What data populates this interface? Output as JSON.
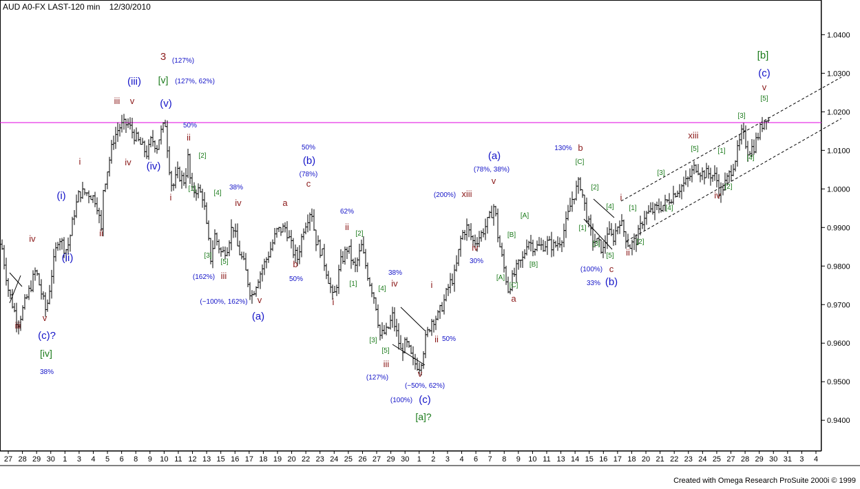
{
  "header": {
    "symbol": "AUD A0-FX LAST-120 min",
    "date": "12/30/2010"
  },
  "footer": {
    "credit": "Created with Omega Research ProSuite 2000i © 1999"
  },
  "colors": {
    "wave_navy": "#1414c8",
    "wave_brown": "#8b1a1a",
    "wave_green": "#1a7a1a",
    "resistance": "#e000e0",
    "price": "#000000"
  },
  "chart_data": {
    "type": "ohlc",
    "title": "AUD A0-FX LAST-120 min",
    "ylim": [
      0.932,
      1.049
    ],
    "y_ticks": [
      "1.0400",
      "1.0300",
      "1.0200",
      "1.0100",
      "1.0000",
      "0.9900",
      "0.9800",
      "0.9700",
      "0.9600",
      "0.9500",
      "0.9400"
    ],
    "x_ticks": [
      "27",
      "28",
      "29",
      "30",
      "1",
      "3",
      "4",
      "5",
      "6",
      "8",
      "9",
      "10",
      "11",
      "12",
      "13",
      "15",
      "16",
      "17",
      "18",
      "19",
      "20",
      "22",
      "23",
      "24",
      "25",
      "26",
      "27",
      "29",
      "30",
      "1",
      "2",
      "3",
      "4",
      "6",
      "7",
      "8",
      "9",
      "10",
      "11",
      "13",
      "14",
      "15",
      "16",
      "17",
      "18",
      "20",
      "21",
      "22",
      "23",
      "24",
      "25",
      "27",
      "28",
      "29",
      "30",
      "31",
      "3",
      "4"
    ],
    "resistance_level": 1.0172,
    "price_path": [
      [
        0,
        0.988
      ],
      [
        12,
        0.974
      ],
      [
        26,
        0.965
      ],
      [
        45,
        0.975
      ],
      [
        52,
        0.979
      ],
      [
        60,
        0.973
      ],
      [
        67,
        0.968
      ],
      [
        75,
        0.978
      ],
      [
        85,
        0.988
      ],
      [
        95,
        0.984
      ],
      [
        100,
        0.986
      ],
      [
        108,
        0.994
      ],
      [
        115,
        0.999
      ],
      [
        128,
        0.999
      ],
      [
        140,
        0.997
      ],
      [
        147,
        0.989
      ],
      [
        150,
        1.0
      ],
      [
        156,
        1.005
      ],
      [
        165,
        1.013
      ],
      [
        173,
        1.016
      ],
      [
        185,
        1.017
      ],
      [
        198,
        1.013
      ],
      [
        214,
        1.009
      ],
      [
        220,
        1.013
      ],
      [
        228,
        1.011
      ],
      [
        232,
        1.014
      ],
      [
        240,
        1.017
      ],
      [
        245,
        1.007
      ],
      [
        250,
        1.0
      ],
      [
        258,
        1.004
      ],
      [
        268,
        1.002
      ],
      [
        273,
        1.008
      ],
      [
        278,
        0.999
      ],
      [
        286,
        1.0
      ],
      [
        295,
        0.998
      ],
      [
        300,
        0.99
      ],
      [
        306,
        0.982
      ],
      [
        312,
        0.988
      ],
      [
        322,
        0.983
      ],
      [
        330,
        0.985
      ],
      [
        338,
        0.991
      ],
      [
        345,
        0.985
      ],
      [
        355,
        0.98
      ],
      [
        365,
        0.972
      ],
      [
        375,
        0.977
      ],
      [
        385,
        0.981
      ],
      [
        392,
        0.984
      ],
      [
        402,
        0.989
      ],
      [
        415,
        0.99
      ],
      [
        425,
        0.984
      ],
      [
        432,
        0.982
      ],
      [
        441,
        0.99
      ],
      [
        452,
        0.995
      ],
      [
        458,
        0.987
      ],
      [
        468,
        0.983
      ],
      [
        478,
        0.976
      ],
      [
        484,
        0.971
      ],
      [
        495,
        0.981
      ],
      [
        505,
        0.985
      ],
      [
        515,
        0.979
      ],
      [
        525,
        0.985
      ],
      [
        535,
        0.977
      ],
      [
        545,
        0.971
      ],
      [
        552,
        0.962
      ],
      [
        562,
        0.963
      ],
      [
        570,
        0.967
      ],
      [
        582,
        0.958
      ],
      [
        590,
        0.96
      ],
      [
        600,
        0.955
      ],
      [
        610,
        0.954
      ],
      [
        618,
        0.961
      ],
      [
        627,
        0.966
      ],
      [
        636,
        0.967
      ],
      [
        645,
        0.971
      ],
      [
        652,
        0.975
      ],
      [
        661,
        0.978
      ],
      [
        670,
        0.988
      ],
      [
        678,
        0.99
      ],
      [
        688,
        0.986
      ],
      [
        698,
        0.988
      ],
      [
        710,
        0.992
      ],
      [
        718,
        0.996
      ],
      [
        723,
        0.988
      ],
      [
        728,
        0.983
      ],
      [
        738,
        0.974
      ],
      [
        745,
        0.977
      ],
      [
        752,
        0.98
      ],
      [
        760,
        0.982
      ],
      [
        766,
        0.987
      ],
      [
        775,
        0.985
      ],
      [
        785,
        0.985
      ],
      [
        795,
        0.986
      ],
      [
        805,
        0.985
      ],
      [
        815,
        0.987
      ],
      [
        822,
        0.991
      ],
      [
        830,
        0.997
      ],
      [
        842,
        1.002
      ],
      [
        852,
        0.993
      ],
      [
        860,
        0.987
      ],
      [
        868,
        0.986
      ],
      [
        876,
        0.984
      ],
      [
        882,
        0.989
      ],
      [
        890,
        0.987
      ],
      [
        900,
        0.992
      ],
      [
        908,
        0.988
      ],
      [
        914,
        0.985
      ],
      [
        925,
        0.987
      ],
      [
        935,
        0.993
      ],
      [
        945,
        0.994
      ],
      [
        955,
        0.995
      ],
      [
        965,
        0.996
      ],
      [
        975,
        0.998
      ],
      [
        985,
        1.0
      ],
      [
        998,
        1.002
      ],
      [
        1010,
        1.006
      ],
      [
        1020,
        1.004
      ],
      [
        1030,
        1.004
      ],
      [
        1040,
        1.003
      ],
      [
        1045,
        0.999
      ],
      [
        1055,
        1.002
      ],
      [
        1062,
        1.005
      ],
      [
        1070,
        1.009
      ],
      [
        1078,
        1.015
      ],
      [
        1086,
        1.01
      ],
      [
        1095,
        1.011
      ],
      [
        1105,
        1.016
      ],
      [
        1113,
        1.019
      ],
      [
        1118,
        1.017
      ]
    ],
    "wave_labels": [
      {
        "text": "3",
        "x": 237,
        "y": 87,
        "color": "brown",
        "size": 15
      },
      {
        "text": "(127%)",
        "x": 266,
        "y": 91,
        "color": "navy",
        "size": 10
      },
      {
        "text": "(iii)",
        "x": 195,
        "y": 123,
        "color": "navy",
        "size": 15
      },
      {
        "text": "[v]",
        "x": 237,
        "y": 121,
        "color": "green",
        "size": 14
      },
      {
        "text": "(127%, 62%)",
        "x": 283,
        "y": 121,
        "color": "navy",
        "size": 10
      },
      {
        "text": "(v)",
        "x": 241,
        "y": 155,
        "color": "navy",
        "size": 15
      },
      {
        "text": "iii",
        "x": 170,
        "y": 151,
        "color": "brown",
        "size": 13
      },
      {
        "text": "v",
        "x": 192,
        "y": 151,
        "color": "brown",
        "size": 13
      },
      {
        "text": "50%",
        "x": 276,
        "y": 185,
        "color": "navy",
        "size": 10
      },
      {
        "text": "iv",
        "x": 186,
        "y": 240,
        "color": "brown",
        "size": 13
      },
      {
        "text": "(iv)",
        "x": 223,
        "y": 246,
        "color": "navy",
        "size": 15
      },
      {
        "text": "ii",
        "x": 274,
        "y": 204,
        "color": "brown",
        "size": 13
      },
      {
        "text": "[2]",
        "x": 294,
        "y": 229,
        "color": "green",
        "size": 10
      },
      {
        "text": "i",
        "x": 116,
        "y": 239,
        "color": "brown",
        "size": 13
      },
      {
        "text": "(i)",
        "x": 89,
        "y": 289,
        "color": "navy",
        "size": 15
      },
      {
        "text": "i",
        "x": 248,
        "y": 291,
        "color": "brown",
        "size": 13
      },
      {
        "text": "[1]",
        "x": 279,
        "y": 277,
        "color": "green",
        "size": 10
      },
      {
        "text": "[4]",
        "x": 316,
        "y": 283,
        "color": "green",
        "size": 10
      },
      {
        "text": "38%",
        "x": 343,
        "y": 275,
        "color": "navy",
        "size": 10
      },
      {
        "text": "iv",
        "x": 346,
        "y": 299,
        "color": "brown",
        "size": 13
      },
      {
        "text": "ii",
        "x": 147,
        "y": 343,
        "color": "brown",
        "size": 13
      },
      {
        "text": "iv",
        "x": 47,
        "y": 351,
        "color": "brown",
        "size": 13
      },
      {
        "text": "(ii)",
        "x": 98,
        "y": 379,
        "color": "navy",
        "size": 15
      },
      {
        "text": "[3]",
        "x": 302,
        "y": 374,
        "color": "green",
        "size": 10
      },
      {
        "text": "[5]",
        "x": 326,
        "y": 383,
        "color": "green",
        "size": 10
      },
      {
        "text": "(162%)",
        "x": 296,
        "y": 405,
        "color": "navy",
        "size": 10
      },
      {
        "text": "iii",
        "x": 325,
        "y": 405,
        "color": "brown",
        "size": 13
      },
      {
        "text": "(~100%, 162%)",
        "x": 325,
        "y": 441,
        "color": "navy",
        "size": 10
      },
      {
        "text": "v",
        "x": 377,
        "y": 440,
        "color": "brown",
        "size": 13
      },
      {
        "text": "(a)",
        "x": 375,
        "y": 464,
        "color": "navy",
        "size": 15
      },
      {
        "text": "iii",
        "x": 26,
        "y": 477,
        "color": "brown",
        "size": 13
      },
      {
        "text": "v",
        "x": 65,
        "y": 466,
        "color": "brown",
        "size": 13
      },
      {
        "text": "(c)?",
        "x": 68,
        "y": 492,
        "color": "navy",
        "size": 15
      },
      {
        "text": "[iv]",
        "x": 67,
        "y": 518,
        "color": "green",
        "size": 14
      },
      {
        "text": "38%",
        "x": 68,
        "y": 543,
        "color": "navy",
        "size": 10
      },
      {
        "text": "a",
        "x": 414,
        "y": 299,
        "color": "brown",
        "size": 13
      },
      {
        "text": "b",
        "x": 429,
        "y": 388,
        "color": "brown",
        "size": 13
      },
      {
        "text": "50%",
        "x": 430,
        "y": 408,
        "color": "navy",
        "size": 10
      },
      {
        "text": "50%",
        "x": 448,
        "y": 217,
        "color": "navy",
        "size": 10
      },
      {
        "text": "(b)",
        "x": 449,
        "y": 238,
        "color": "navy",
        "size": 15
      },
      {
        "text": "(78%)",
        "x": 448,
        "y": 256,
        "color": "navy",
        "size": 10
      },
      {
        "text": "c",
        "x": 448,
        "y": 271,
        "color": "brown",
        "size": 13
      },
      {
        "text": "62%",
        "x": 504,
        "y": 310,
        "color": "navy",
        "size": 10
      },
      {
        "text": "ii",
        "x": 504,
        "y": 334,
        "color": "brown",
        "size": 13
      },
      {
        "text": "[2]",
        "x": 522,
        "y": 342,
        "color": "green",
        "size": 10
      },
      {
        "text": "[1]",
        "x": 513,
        "y": 415,
        "color": "green",
        "size": 10
      },
      {
        "text": "i",
        "x": 484,
        "y": 443,
        "color": "brown",
        "size": 13
      },
      {
        "text": "38%",
        "x": 574,
        "y": 399,
        "color": "navy",
        "size": 10
      },
      {
        "text": "iv",
        "x": 573,
        "y": 416,
        "color": "brown",
        "size": 13
      },
      {
        "text": "[4]",
        "x": 555,
        "y": 422,
        "color": "green",
        "size": 10
      },
      {
        "text": "[3]",
        "x": 542,
        "y": 497,
        "color": "green",
        "size": 10
      },
      {
        "text": "[5]",
        "x": 560,
        "y": 512,
        "color": "green",
        "size": 10
      },
      {
        "text": "iii",
        "x": 561,
        "y": 533,
        "color": "brown",
        "size": 13
      },
      {
        "text": "(127%)",
        "x": 548,
        "y": 551,
        "color": "navy",
        "size": 10
      },
      {
        "text": "v",
        "x": 610,
        "y": 547,
        "color": "brown",
        "size": 13
      },
      {
        "text": "(~50%, 62%)",
        "x": 617,
        "y": 563,
        "color": "navy",
        "size": 10
      },
      {
        "text": "(100%)",
        "x": 583,
        "y": 584,
        "color": "navy",
        "size": 10
      },
      {
        "text": "(c)",
        "x": 617,
        "y": 585,
        "color": "navy",
        "size": 15
      },
      {
        "text": "[a]?",
        "x": 615,
        "y": 610,
        "color": "green",
        "size": 14
      },
      {
        "text": "i",
        "x": 627,
        "y": 418,
        "color": "brown",
        "size": 13
      },
      {
        "text": "ii",
        "x": 634,
        "y": 497,
        "color": "brown",
        "size": 13
      },
      {
        "text": "50%",
        "x": 652,
        "y": 495,
        "color": "navy",
        "size": 10
      },
      {
        "text": "(200%)",
        "x": 646,
        "y": 286,
        "color": "navy",
        "size": 10
      },
      {
        "text": "xiii",
        "x": 678,
        "y": 286,
        "color": "brown",
        "size": 13
      },
      {
        "text": "iv",
        "x": 690,
        "y": 364,
        "color": "brown",
        "size": 13
      },
      {
        "text": "30%",
        "x": 692,
        "y": 382,
        "color": "navy",
        "size": 10
      },
      {
        "text": "(a)",
        "x": 718,
        "y": 231,
        "color": "navy",
        "size": 15
      },
      {
        "text": "(78%, 38%)",
        "x": 714,
        "y": 249,
        "color": "navy",
        "size": 10
      },
      {
        "text": "v",
        "x": 717,
        "y": 267,
        "color": "brown",
        "size": 13
      },
      {
        "text": "[A]",
        "x": 762,
        "y": 316,
        "color": "green",
        "size": 10
      },
      {
        "text": "[B]",
        "x": 743,
        "y": 344,
        "color": "green",
        "size": 10
      },
      {
        "text": "[B]",
        "x": 775,
        "y": 387,
        "color": "green",
        "size": 10
      },
      {
        "text": "[A]",
        "x": 727,
        "y": 406,
        "color": "green",
        "size": 10
      },
      {
        "text": "[C]",
        "x": 746,
        "y": 417,
        "color": "green",
        "size": 10
      },
      {
        "text": "a",
        "x": 746,
        "y": 438,
        "color": "brown",
        "size": 13
      },
      {
        "text": "130%",
        "x": 818,
        "y": 218,
        "color": "navy",
        "size": 10
      },
      {
        "text": "b",
        "x": 843,
        "y": 219,
        "color": "brown",
        "size": 13
      },
      {
        "text": "[C]",
        "x": 842,
        "y": 238,
        "color": "green",
        "size": 10
      },
      {
        "text": "[2]",
        "x": 864,
        "y": 275,
        "color": "green",
        "size": 10
      },
      {
        "text": "[4]",
        "x": 886,
        "y": 303,
        "color": "green",
        "size": 10
      },
      {
        "text": "[1]",
        "x": 846,
        "y": 334,
        "color": "green",
        "size": 10
      },
      {
        "text": "[3]",
        "x": 866,
        "y": 357,
        "color": "green",
        "size": 10
      },
      {
        "text": "[5]",
        "x": 886,
        "y": 374,
        "color": "green",
        "size": 10
      },
      {
        "text": "(100%)",
        "x": 859,
        "y": 394,
        "color": "navy",
        "size": 10
      },
      {
        "text": "c",
        "x": 888,
        "y": 395,
        "color": "brown",
        "size": 13
      },
      {
        "text": "33%",
        "x": 862,
        "y": 414,
        "color": "navy",
        "size": 10
      },
      {
        "text": "(b)",
        "x": 888,
        "y": 414,
        "color": "navy",
        "size": 15
      },
      {
        "text": "i",
        "x": 902,
        "y": 291,
        "color": "brown",
        "size": 13
      },
      {
        "text": "[1]",
        "x": 919,
        "y": 305,
        "color": "green",
        "size": 10
      },
      {
        "text": "[2]",
        "x": 930,
        "y": 354,
        "color": "green",
        "size": 10
      },
      {
        "text": "ii",
        "x": 912,
        "y": 371,
        "color": "brown",
        "size": 13
      },
      {
        "text": "[3]",
        "x": 960,
        "y": 254,
        "color": "green",
        "size": 10
      },
      {
        "text": "[4]",
        "x": 972,
        "y": 305,
        "color": "green",
        "size": 10
      },
      {
        "text": "xiii",
        "x": 1007,
        "y": 201,
        "color": "brown",
        "size": 13
      },
      {
        "text": "[5]",
        "x": 1009,
        "y": 219,
        "color": "green",
        "size": 10
      },
      {
        "text": "[1]",
        "x": 1048,
        "y": 222,
        "color": "green",
        "size": 10
      },
      {
        "text": "[2]",
        "x": 1058,
        "y": 274,
        "color": "green",
        "size": 10
      },
      {
        "text": "iv",
        "x": 1042,
        "y": 288,
        "color": "brown",
        "size": 13
      },
      {
        "text": "[3]",
        "x": 1077,
        "y": 171,
        "color": "green",
        "size": 10
      },
      {
        "text": "[4]",
        "x": 1090,
        "y": 232,
        "color": "green",
        "size": 10
      },
      {
        "text": "[b]",
        "x": 1108,
        "y": 85,
        "color": "green",
        "size": 15
      },
      {
        "text": "(c)",
        "x": 1110,
        "y": 111,
        "color": "navy",
        "size": 15
      },
      {
        "text": "v",
        "x": 1110,
        "y": 131,
        "color": "brown",
        "size": 13
      },
      {
        "text": "[5]",
        "x": 1110,
        "y": 146,
        "color": "green",
        "size": 10
      }
    ]
  }
}
